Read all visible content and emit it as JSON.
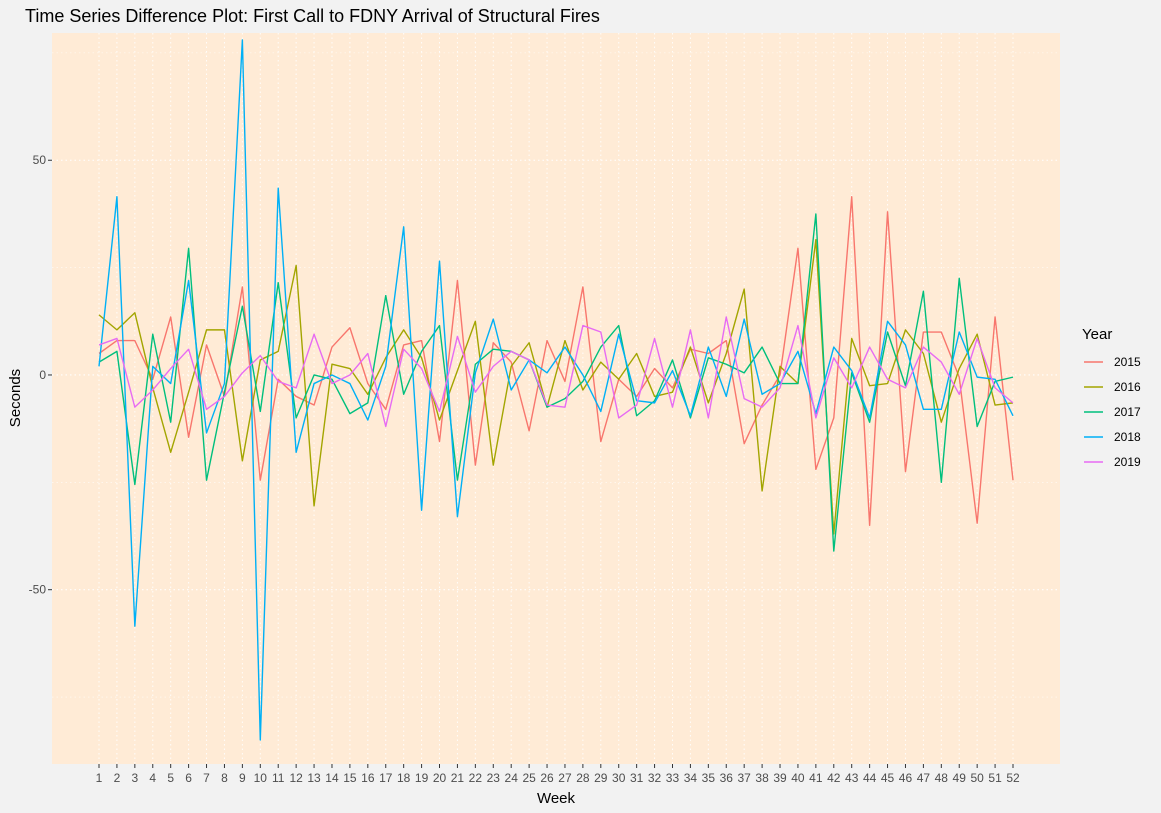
{
  "chart_data": {
    "type": "line",
    "title": "Time Series Difference Plot: First Call to FDNY Arrival of Structural Fires",
    "xlabel": "Week",
    "ylabel": "Seconds",
    "categories": [
      1,
      2,
      3,
      4,
      5,
      6,
      7,
      8,
      9,
      10,
      11,
      12,
      13,
      14,
      15,
      16,
      17,
      18,
      19,
      20,
      21,
      22,
      23,
      24,
      25,
      26,
      27,
      28,
      29,
      30,
      31,
      32,
      33,
      34,
      35,
      36,
      37,
      38,
      39,
      40,
      41,
      42,
      43,
      44,
      45,
      46,
      47,
      48,
      49,
      50,
      51,
      52
    ],
    "ylim": [
      -85,
      78
    ],
    "yticks": [
      -50,
      0,
      50
    ],
    "grid": true,
    "background": "#ffebd6",
    "legend": {
      "title": "Year",
      "position": "right"
    },
    "series": [
      {
        "name": "2015",
        "color": "#F8766D",
        "values": [
          5,
          8,
          8,
          -1,
          13.5,
          -14.5,
          7,
          -5,
          20.5,
          -24.5,
          -1,
          -5,
          -7,
          6.5,
          11,
          -2,
          -8,
          7,
          8,
          -15.5,
          22,
          -21,
          7.5,
          3,
          -13,
          8,
          -1.5,
          20.5,
          -15.5,
          -1,
          -5,
          1.5,
          -3,
          6,
          5,
          8,
          -16,
          -7,
          0,
          29.5,
          -22,
          -10,
          41.5,
          -35,
          38,
          -22.5,
          10,
          10,
          -0.5,
          -34.5,
          13.5,
          -24.5
        ]
      },
      {
        "name": "2016",
        "color": "#A3A500",
        "values": [
          14,
          10.5,
          14.5,
          -3,
          -18,
          -4,
          10.5,
          10.5,
          -20,
          3.5,
          5.5,
          25.5,
          -30.5,
          2.5,
          1.5,
          -4.5,
          4,
          10.5,
          4,
          -10.5,
          1,
          12.5,
          -21,
          2,
          7.5,
          -7.5,
          8,
          -3.5,
          3,
          -1,
          5,
          -5,
          -4,
          6.5,
          -6.5,
          5,
          20,
          -27,
          2,
          -2,
          31.5,
          -37,
          8.5,
          -2.5,
          -2,
          10.5,
          5,
          -11,
          1.5,
          9.5,
          -7,
          -6.5
        ]
      },
      {
        "name": "2017",
        "color": "#00BF7D",
        "values": [
          3,
          5.5,
          -25.5,
          9.5,
          -11,
          29.5,
          -24.5,
          -4,
          16,
          -8.5,
          21.5,
          -10,
          0,
          -1,
          -9,
          -6.5,
          18.5,
          -4.5,
          5.5,
          11.5,
          -24.5,
          2.5,
          6,
          5.5,
          3.5,
          -7.5,
          -5.5,
          -1.5,
          6.5,
          11.5,
          -9.5,
          -6,
          3.5,
          -10,
          4,
          2.5,
          0.5,
          6.5,
          -2,
          -2,
          37.5,
          -41,
          0.5,
          -11,
          10,
          -2.5,
          19.5,
          -25,
          22.5,
          -12,
          -1.5,
          -0.5
        ]
      },
      {
        "name": "2018",
        "color": "#00B0F6",
        "values": [
          2,
          41.5,
          -58.5,
          2,
          -2,
          22,
          -13.5,
          -2,
          78,
          -85,
          43.5,
          -18,
          -2,
          0,
          -2,
          -10.5,
          2,
          34.5,
          -31.5,
          26.5,
          -33,
          0.5,
          13,
          -3.5,
          3.5,
          0.5,
          6.5,
          0,
          -8.5,
          9.5,
          -6,
          -6.5,
          1,
          -9.5,
          6.5,
          -5,
          13,
          -4.5,
          -2,
          5.5,
          -9,
          6.5,
          1,
          -10,
          12.5,
          7,
          -8,
          -8,
          10,
          -0.5,
          -1,
          -9.5
        ]
      },
      {
        "name": "2019",
        "color": "#E76BF3",
        "values": [
          7,
          8.5,
          -7.5,
          -3.5,
          1.5,
          6,
          -8,
          -5,
          0.5,
          4.5,
          -1.5,
          -3,
          9.5,
          -2,
          0,
          5,
          -12,
          6,
          1.5,
          -8.5,
          9,
          -4,
          2,
          5.5,
          3.5,
          -7,
          -7.5,
          11.5,
          10,
          -10,
          -7,
          8.5,
          -7.5,
          10.5,
          -10,
          13.5,
          -5.5,
          -7.5,
          -3,
          11.5,
          -10,
          4,
          -3,
          6.5,
          -1,
          -3,
          6.5,
          3,
          -4.5,
          8.5,
          -3,
          -6.5
        ]
      }
    ]
  }
}
